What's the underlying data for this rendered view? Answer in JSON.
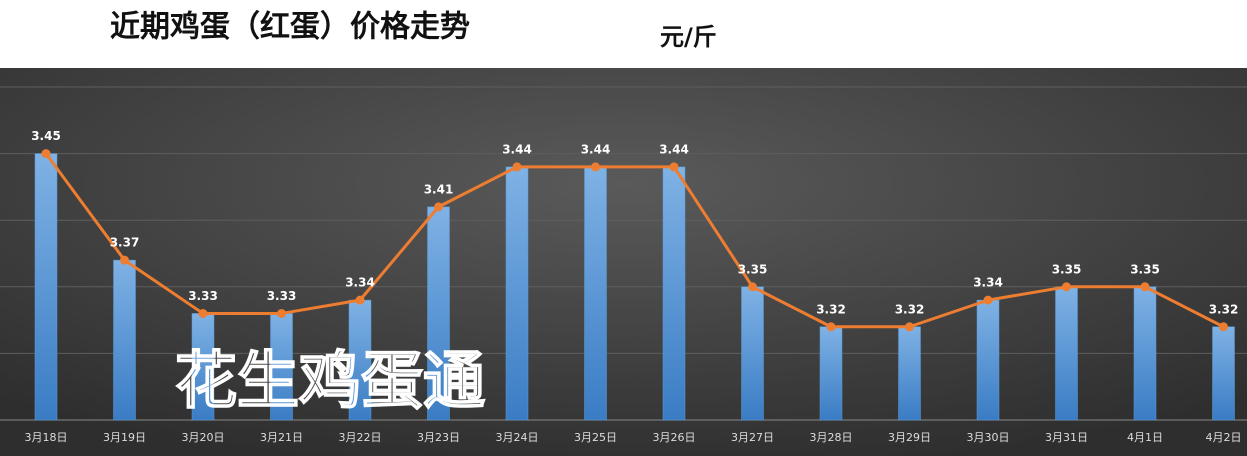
{
  "chart_data": {
    "type": "combo",
    "title": "近期鸡蛋（红蛋）价格走势",
    "unit_label": "元/斤",
    "watermark": "花生鸡蛋通",
    "categories": [
      "3月18日",
      "3月19日",
      "3月20日",
      "3月21日",
      "3月22日",
      "3月23日",
      "3月24日",
      "3月25日",
      "3月26日",
      "3月27日",
      "3月28日",
      "3月29日",
      "3月30日",
      "3月31日",
      "4月1日",
      "4月2日"
    ],
    "values": [
      3.45,
      3.37,
      3.33,
      3.33,
      3.34,
      3.41,
      3.44,
      3.44,
      3.44,
      3.35,
      3.32,
      3.32,
      3.34,
      3.35,
      3.35,
      3.32
    ],
    "bar_color": "#5b9bd5",
    "line_color": "#ed7d31",
    "ylim": [
      3.25,
      3.5
    ],
    "yticks": [
      3.25,
      3.3,
      3.35,
      3.4,
      3.45,
      3.5
    ],
    "grid": true
  }
}
